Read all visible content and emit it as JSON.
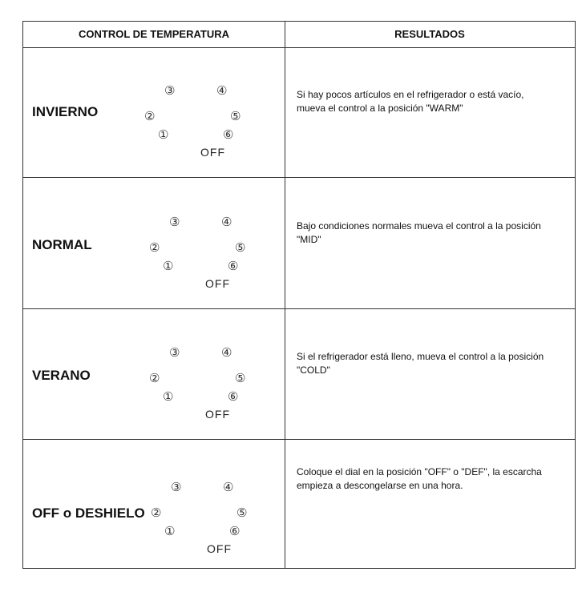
{
  "header": {
    "col1": "CONTROL DE TEMPERATURA",
    "col2": "RESULTADOS"
  },
  "dial": {
    "positions": [
      "③",
      "④",
      "②",
      "⑤",
      "①",
      "⑥"
    ],
    "off_label": "OFF"
  },
  "rows": [
    {
      "label": "INVIERNO",
      "result": "Si hay pocos artículos en el refrigerador o está vacío, mueva el control a la posición \"WARM\""
    },
    {
      "label": "NORMAL",
      "result": "Bajo condiciones normales mueva el control a la posición \"MID\""
    },
    {
      "label": "VERANO",
      "result": "Si el refrigerador está lleno, mueva el control a la posición \"COLD\""
    },
    {
      "label": "OFF o DESHIELO",
      "result": "Coloque el dial en la posición \"OFF\" o \"DEF\", la escarcha empieza a descongelarse en una hora."
    }
  ]
}
